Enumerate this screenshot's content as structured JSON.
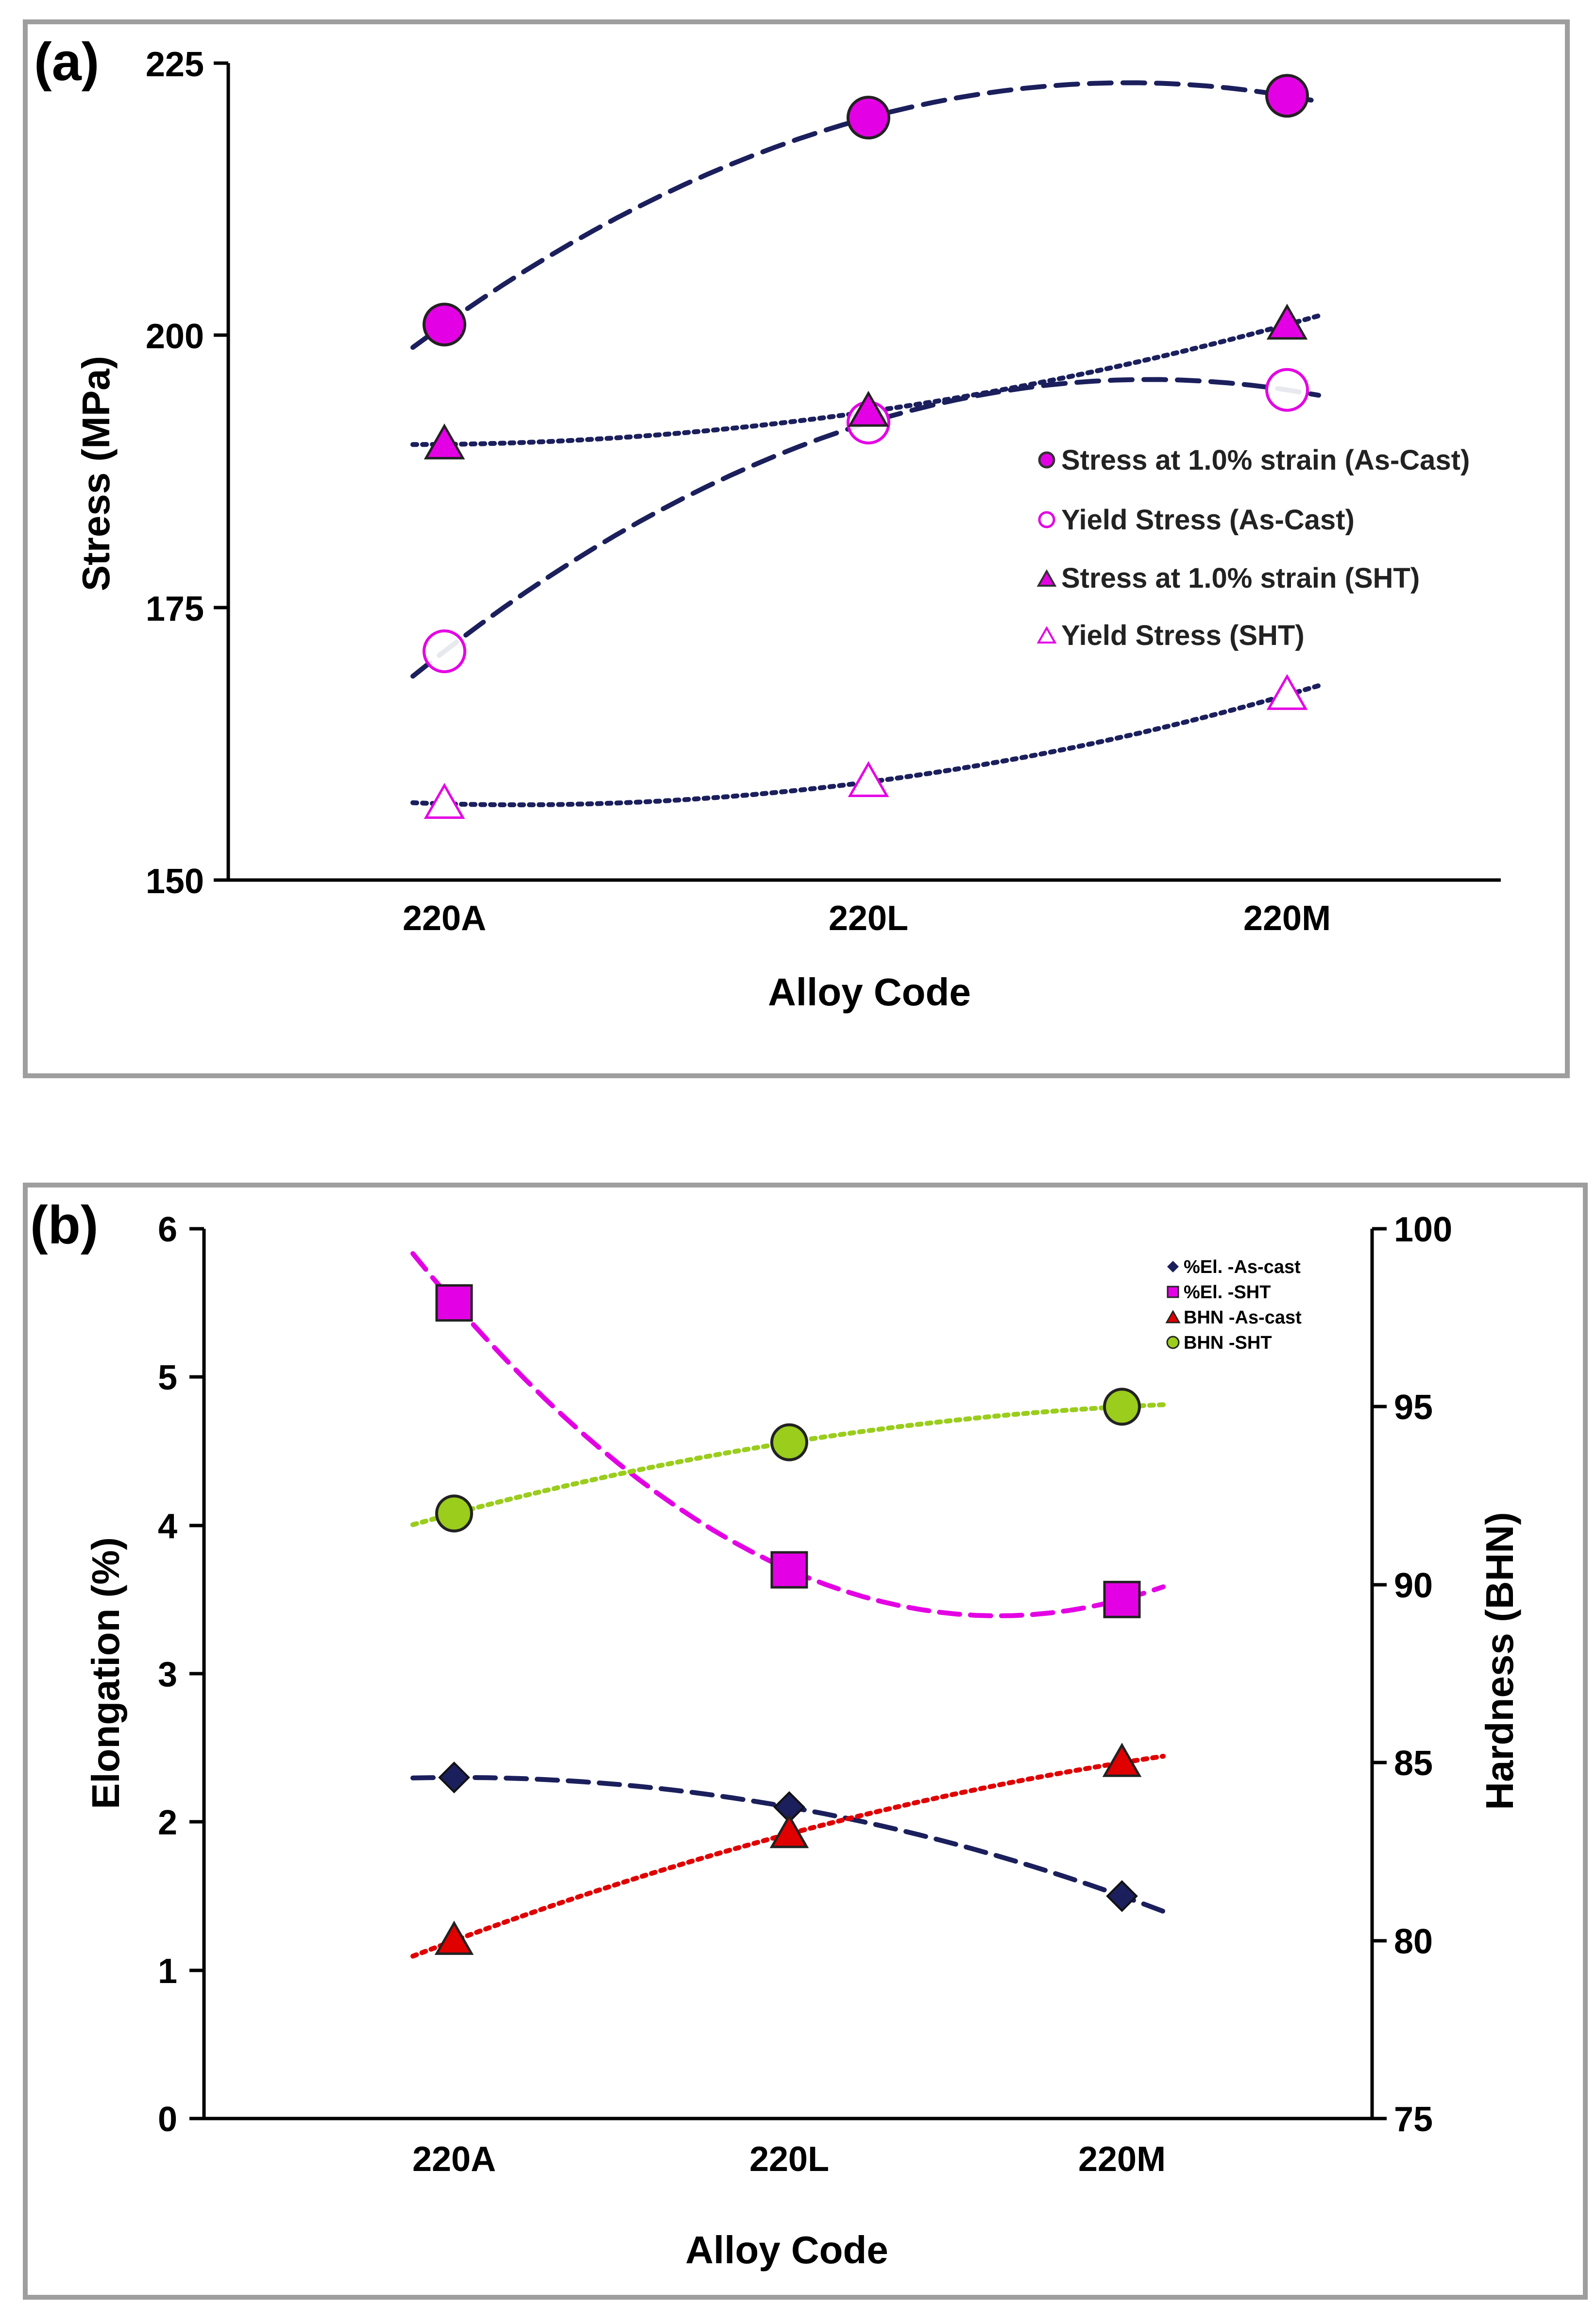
{
  "colors": {
    "navy": "#1b1f5c",
    "magenta": "#e400e4",
    "red": "#e00000",
    "green": "#9acd1c",
    "frame": "#9e9e9e"
  },
  "chart_data": [
    {
      "panel_label": "(a)",
      "type": "scatter",
      "title": "",
      "xlabel": "Alloy Code",
      "ylabel": "Stress (MPa)",
      "categories": [
        "220A",
        "220L",
        "220M"
      ],
      "ylim": [
        150,
        225
      ],
      "yticks": [
        150,
        175,
        200,
        225
      ],
      "yticks_text": [
        "150",
        "175",
        "200",
        "225"
      ],
      "legend_position": "right-middle",
      "series": [
        {
          "name": "Stress at 1.0% strain (As-Cast)",
          "marker": "circle-filled",
          "color": "#e400e4",
          "trend": "dashed",
          "values": [
            201,
            220,
            222
          ]
        },
        {
          "name": "Yield Stress (As-Cast)",
          "marker": "circle-open",
          "color": "#e400e4",
          "trend": "dashed",
          "values": [
            171,
            192,
            195
          ]
        },
        {
          "name": "Stress at 1.0% strain (SHT)",
          "marker": "triangle-filled",
          "color": "#e400e4",
          "trend": "dotted",
          "values": [
            190,
            193,
            201
          ]
        },
        {
          "name": "Yield Stress (SHT)",
          "marker": "triangle-open",
          "color": "#e400e4",
          "trend": "dotted",
          "values": [
            157,
            159,
            167
          ]
        }
      ]
    },
    {
      "panel_label": "(b)",
      "type": "scatter",
      "title": "",
      "xlabel": "Alloy Code",
      "ylabel": "Elongation (%)",
      "ylabel_right": "Hardness (BHN)",
      "categories": [
        "220A",
        "220L",
        "220M"
      ],
      "ylim": [
        0,
        6
      ],
      "yticks_text": [
        "0",
        "1",
        "2",
        "3",
        "4",
        "5",
        "6"
      ],
      "ylim_right": [
        75,
        100
      ],
      "yticks_right_text": [
        "75",
        "80",
        "85",
        "90",
        "95",
        "100"
      ],
      "legend_position": "top-right",
      "series": [
        {
          "name": "%El. -As-cast",
          "axis": "left",
          "marker": "diamond",
          "color": "#1b1f5c",
          "trend": "dashed",
          "values": [
            2.3,
            2.1,
            1.5
          ]
        },
        {
          "name": "%El. -SHT",
          "axis": "left",
          "marker": "square",
          "color": "#e400e4",
          "trend": "dashed",
          "values": [
            5.5,
            3.7,
            3.5
          ]
        },
        {
          "name": "BHN -As-cast",
          "axis": "right",
          "marker": "triangle",
          "color": "#e00000",
          "trend": "dotted",
          "values": [
            80,
            83,
            85
          ]
        },
        {
          "name": "BHN -SHT",
          "axis": "right",
          "marker": "circle",
          "color": "#9acd1c",
          "trend": "dotted",
          "values": [
            92,
            94,
            95
          ]
        }
      ]
    }
  ]
}
